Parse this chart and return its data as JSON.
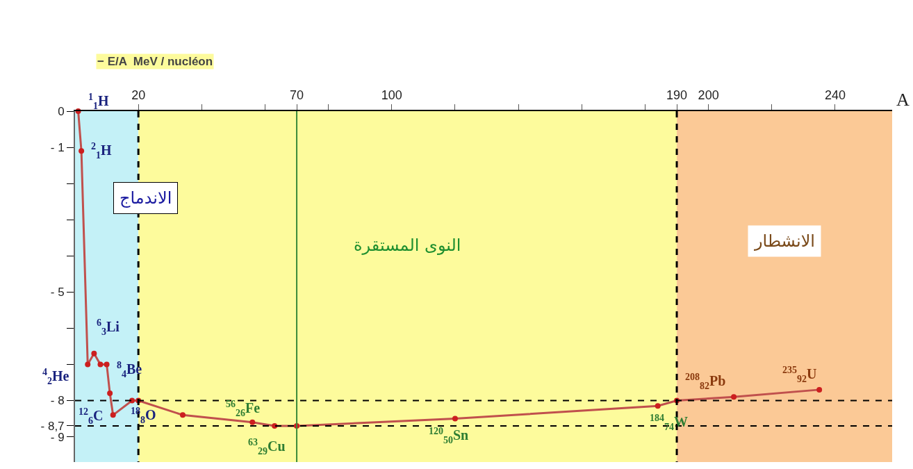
{
  "chart_data": {
    "type": "line",
    "xlabel": "A",
    "ylabel": "− E/A  MeV / nucléon",
    "xlim": [
      0,
      258
    ],
    "ylim": [
      -9.7,
      0
    ],
    "xticks": [
      {
        "value": 20,
        "label": "20"
      },
      {
        "value": 40,
        "label": null
      },
      {
        "value": 60,
        "label": null
      },
      {
        "value": 70,
        "label": "70"
      },
      {
        "value": 80,
        "label": null
      },
      {
        "value": 100,
        "label": "100"
      },
      {
        "value": 120,
        "label": null
      },
      {
        "value": 140,
        "label": null
      },
      {
        "value": 160,
        "label": null
      },
      {
        "value": 180,
        "label": null
      },
      {
        "value": 190,
        "label": "190"
      },
      {
        "value": 200,
        "label": "200"
      },
      {
        "value": 220,
        "label": null
      },
      {
        "value": 240,
        "label": "240"
      }
    ],
    "yticks": [
      0,
      {
        "value": -1,
        "label": "- 1"
      },
      {
        "value": -2,
        "label": null
      },
      {
        "value": -3,
        "label": null
      },
      {
        "value": -4,
        "label": null
      },
      {
        "value": -5,
        "label": "- 5"
      },
      {
        "value": -6,
        "label": null
      },
      {
        "value": -7,
        "label": null
      },
      {
        "value": -8,
        "label": "- 8"
      },
      {
        "value": -8.7,
        "label": "- 8,7"
      },
      {
        "value": -9,
        "label": "- 9"
      }
    ],
    "x": [
      1,
      2,
      4,
      6,
      8,
      10,
      11,
      12,
      18,
      20,
      34,
      56,
      63,
      70,
      120,
      184,
      190,
      208,
      235
    ],
    "series": [
      {
        "color": "#c0504d",
        "values": [
          0,
          -1.1,
          -7.0,
          -6.7,
          -7.0,
          -7.0,
          -7.8,
          -8.4,
          -8.0,
          -8.0,
          -8.4,
          -8.6,
          -8.7,
          -8.7,
          -8.5,
          -8.15,
          -8.0,
          -7.9,
          -7.7
        ]
      }
    ],
    "marker": "circle",
    "line_style": "solid",
    "grid": false,
    "bands": [
      {
        "axis": "x",
        "from": 0,
        "to": 20,
        "label": "الاندماج",
        "color": "#c4f1f7"
      },
      {
        "axis": "x",
        "from": 20,
        "to": 190,
        "label": "النوى المستقرة",
        "color": "#fdfb9c"
      },
      {
        "axis": "x",
        "from": 190,
        "to": 258,
        "label": "الانشطار",
        "color": "#fbc996"
      }
    ],
    "ref_lines": [
      {
        "axis": "x",
        "value": 20,
        "color": "#000000",
        "line_style": "dashed"
      },
      {
        "axis": "x",
        "value": 70,
        "color": "#3a8a3a",
        "line_style": "solid"
      },
      {
        "axis": "x",
        "value": 190,
        "color": "#000000",
        "line_style": "dashed"
      },
      {
        "axis": "y",
        "value": -8,
        "color": "#000000",
        "line_style": "dashed"
      },
      {
        "axis": "y",
        "value": -8.7,
        "color": "#000000",
        "line_style": "dashed"
      }
    ],
    "annotations": [
      {
        "text": "$^{1}$$_{1}$H",
        "x": 1,
        "y": 0
      },
      {
        "text": "$^{2}$$_{1}$H",
        "x": 2,
        "y": -1.1
      },
      {
        "text": "$^{4}$$_{2}$He",
        "x": 4,
        "y": -7.0
      },
      {
        "text": "$^{6}$$_{3}$Li",
        "x": 6,
        "y": -6.7
      },
      {
        "text": "$^{8}$$_{4}$Be",
        "x": 8,
        "y": -7.0
      },
      {
        "text": "$^{12}$$_{6}$C",
        "x": 12,
        "y": -8.4
      },
      {
        "text": "$^{18}$$_{8}$O",
        "x": 18,
        "y": -8.0
      },
      {
        "text": "$^{56}$$_{26}$Fe",
        "x": 56,
        "y": -8.6
      },
      {
        "text": "$^{63}$$_{29}$Cu",
        "x": 63,
        "y": -8.7
      },
      {
        "text": "$^{120}$$_{50}$Sn",
        "x": 120,
        "y": -8.5
      },
      {
        "text": "$^{184}$$_{74}$W",
        "x": 184,
        "y": -8.15
      },
      {
        "text": "$^{208}$$_{82}$Pb",
        "x": 208,
        "y": -7.9
      },
      {
        "text": "$^{235}$$_{92}$U",
        "x": 235,
        "y": -7.7
      }
    ]
  }
}
